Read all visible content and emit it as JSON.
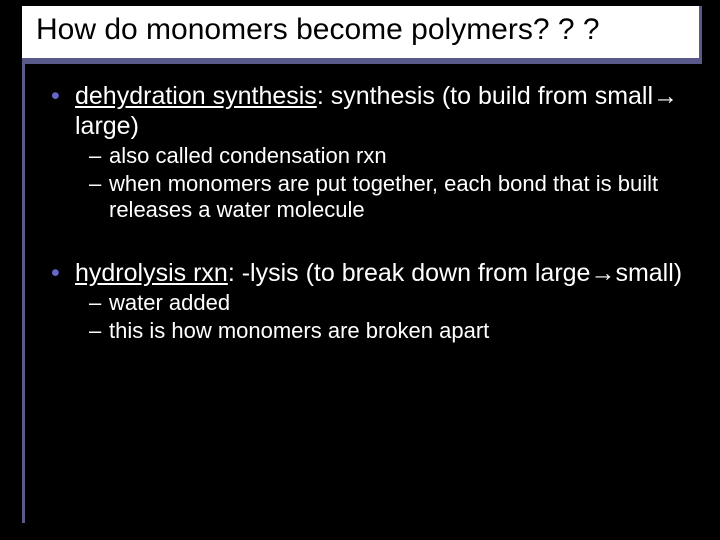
{
  "colors": {
    "background": "#000000",
    "title_bg": "#ffffff",
    "title_text": "#000000",
    "body_text": "#ffffff",
    "bullet_accent": "#6666cc",
    "frame": "#5a5a8a"
  },
  "typography": {
    "title_fontsize": 30,
    "l1_fontsize": 25,
    "l2_fontsize": 22,
    "font_family": "Arial"
  },
  "title": "How do monomers become polymers? ? ?",
  "bullets": [
    {
      "level": 1,
      "term": "dehydration synthesis",
      "rest": ": synthesis (to build from small",
      "arrow": "→",
      "rest2": "large)"
    },
    {
      "level": 2,
      "text": "also called condensation rxn"
    },
    {
      "level": 2,
      "text": "when monomers are put together, each bond that is built releases a water molecule"
    },
    {
      "level": "spacer"
    },
    {
      "level": 1,
      "term": "hydrolysis rxn",
      "rest": ": -lysis (to break down from large",
      "arrow": "→",
      "rest2": "small)"
    },
    {
      "level": 2,
      "text": "water added"
    },
    {
      "level": 2,
      "text": "this is how monomers are broken apart"
    }
  ]
}
